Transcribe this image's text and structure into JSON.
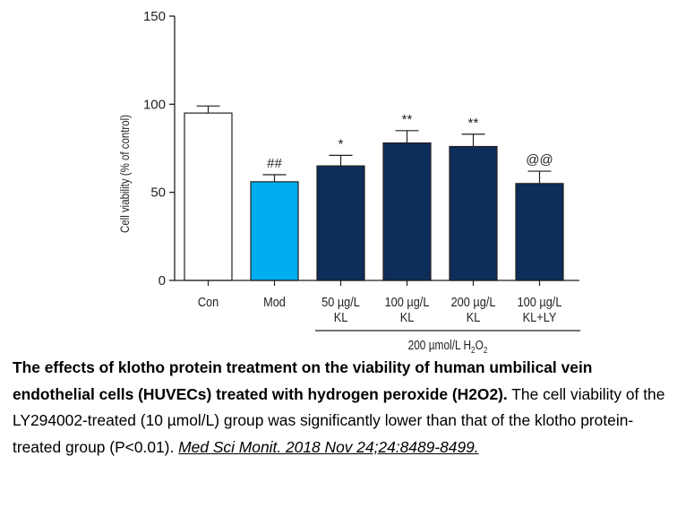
{
  "chart_data": {
    "type": "bar",
    "ylabel": "Cell viability (% of control)",
    "ylim": [
      0,
      150
    ],
    "yticks": [
      0,
      50,
      100,
      150
    ],
    "grid": false,
    "categories": [
      [
        "Con"
      ],
      [
        "Mod"
      ],
      [
        "50 µg/L",
        "KL"
      ],
      [
        "100 µg/L",
        "KL"
      ],
      [
        "200 µg/L",
        "KL"
      ],
      [
        "100 µg/L",
        "KL+LY"
      ]
    ],
    "values": [
      95,
      56,
      65,
      78,
      76,
      55
    ],
    "errors": [
      4,
      4,
      6,
      7,
      7,
      7
    ],
    "significance": [
      "",
      "##",
      "*",
      "**",
      "**",
      "@@"
    ],
    "bar_colors": [
      "#ffffff",
      "#00aeef",
      "#0d2d5a",
      "#0d2d5a",
      "#0d2d5a",
      "#0d2d5a"
    ],
    "group_label": "200 µmol/L H",
    "group_label_subscript": "2",
    "group_label_suffix": "O",
    "group_label_subscript2": "2"
  },
  "caption": {
    "bold_text": "The effects of klotho protein treatment on the viability of human umbilical vein endothelial cells (HUVECs) treated with hydrogen peroxide (H2O2).",
    "body_text": "The cell viability of the LY294002-treated (10 µmol/L) group was significantly lower than that of the klotho protein-treated group (P<0.01).",
    "reference": "Med Sci Monit. 2018 Nov 24;24:8489-8499."
  }
}
